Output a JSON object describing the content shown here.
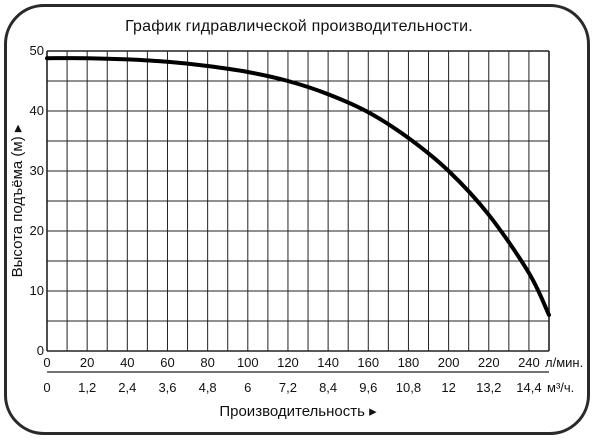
{
  "chart_data": {
    "type": "line",
    "title": "График гидравлической производительности.",
    "ylabel": "Высота подъёма (м) ▸",
    "xlabel": "Производительность ▸",
    "ylim": [
      0,
      50
    ],
    "y_ticks": [
      "0",
      "10",
      "20",
      "30",
      "40",
      "50"
    ],
    "x_primary": {
      "ticks": [
        "0",
        "20",
        "40",
        "60",
        "80",
        "100",
        "120",
        "140",
        "160",
        "180",
        "200",
        "220",
        "240"
      ],
      "unit": "л/мин."
    },
    "x_secondary": {
      "ticks": [
        "0",
        "1,2",
        "2,4",
        "3,6",
        "4,8",
        "6",
        "7,2",
        "8,4",
        "9,6",
        "10,8",
        "12",
        "13,2",
        "14,4"
      ],
      "unit": "м³/ч."
    },
    "xlim": [
      0,
      250
    ],
    "grid": true,
    "series": [
      {
        "x": [
          0,
          20,
          40,
          60,
          80,
          100,
          120,
          140,
          160,
          180,
          200,
          220,
          240,
          250
        ],
        "y": [
          48.8,
          48.8,
          48.6,
          48.2,
          47.5,
          46.5,
          45,
          42.8,
          39.8,
          35.5,
          30,
          22.7,
          13,
          6
        ]
      }
    ]
  }
}
